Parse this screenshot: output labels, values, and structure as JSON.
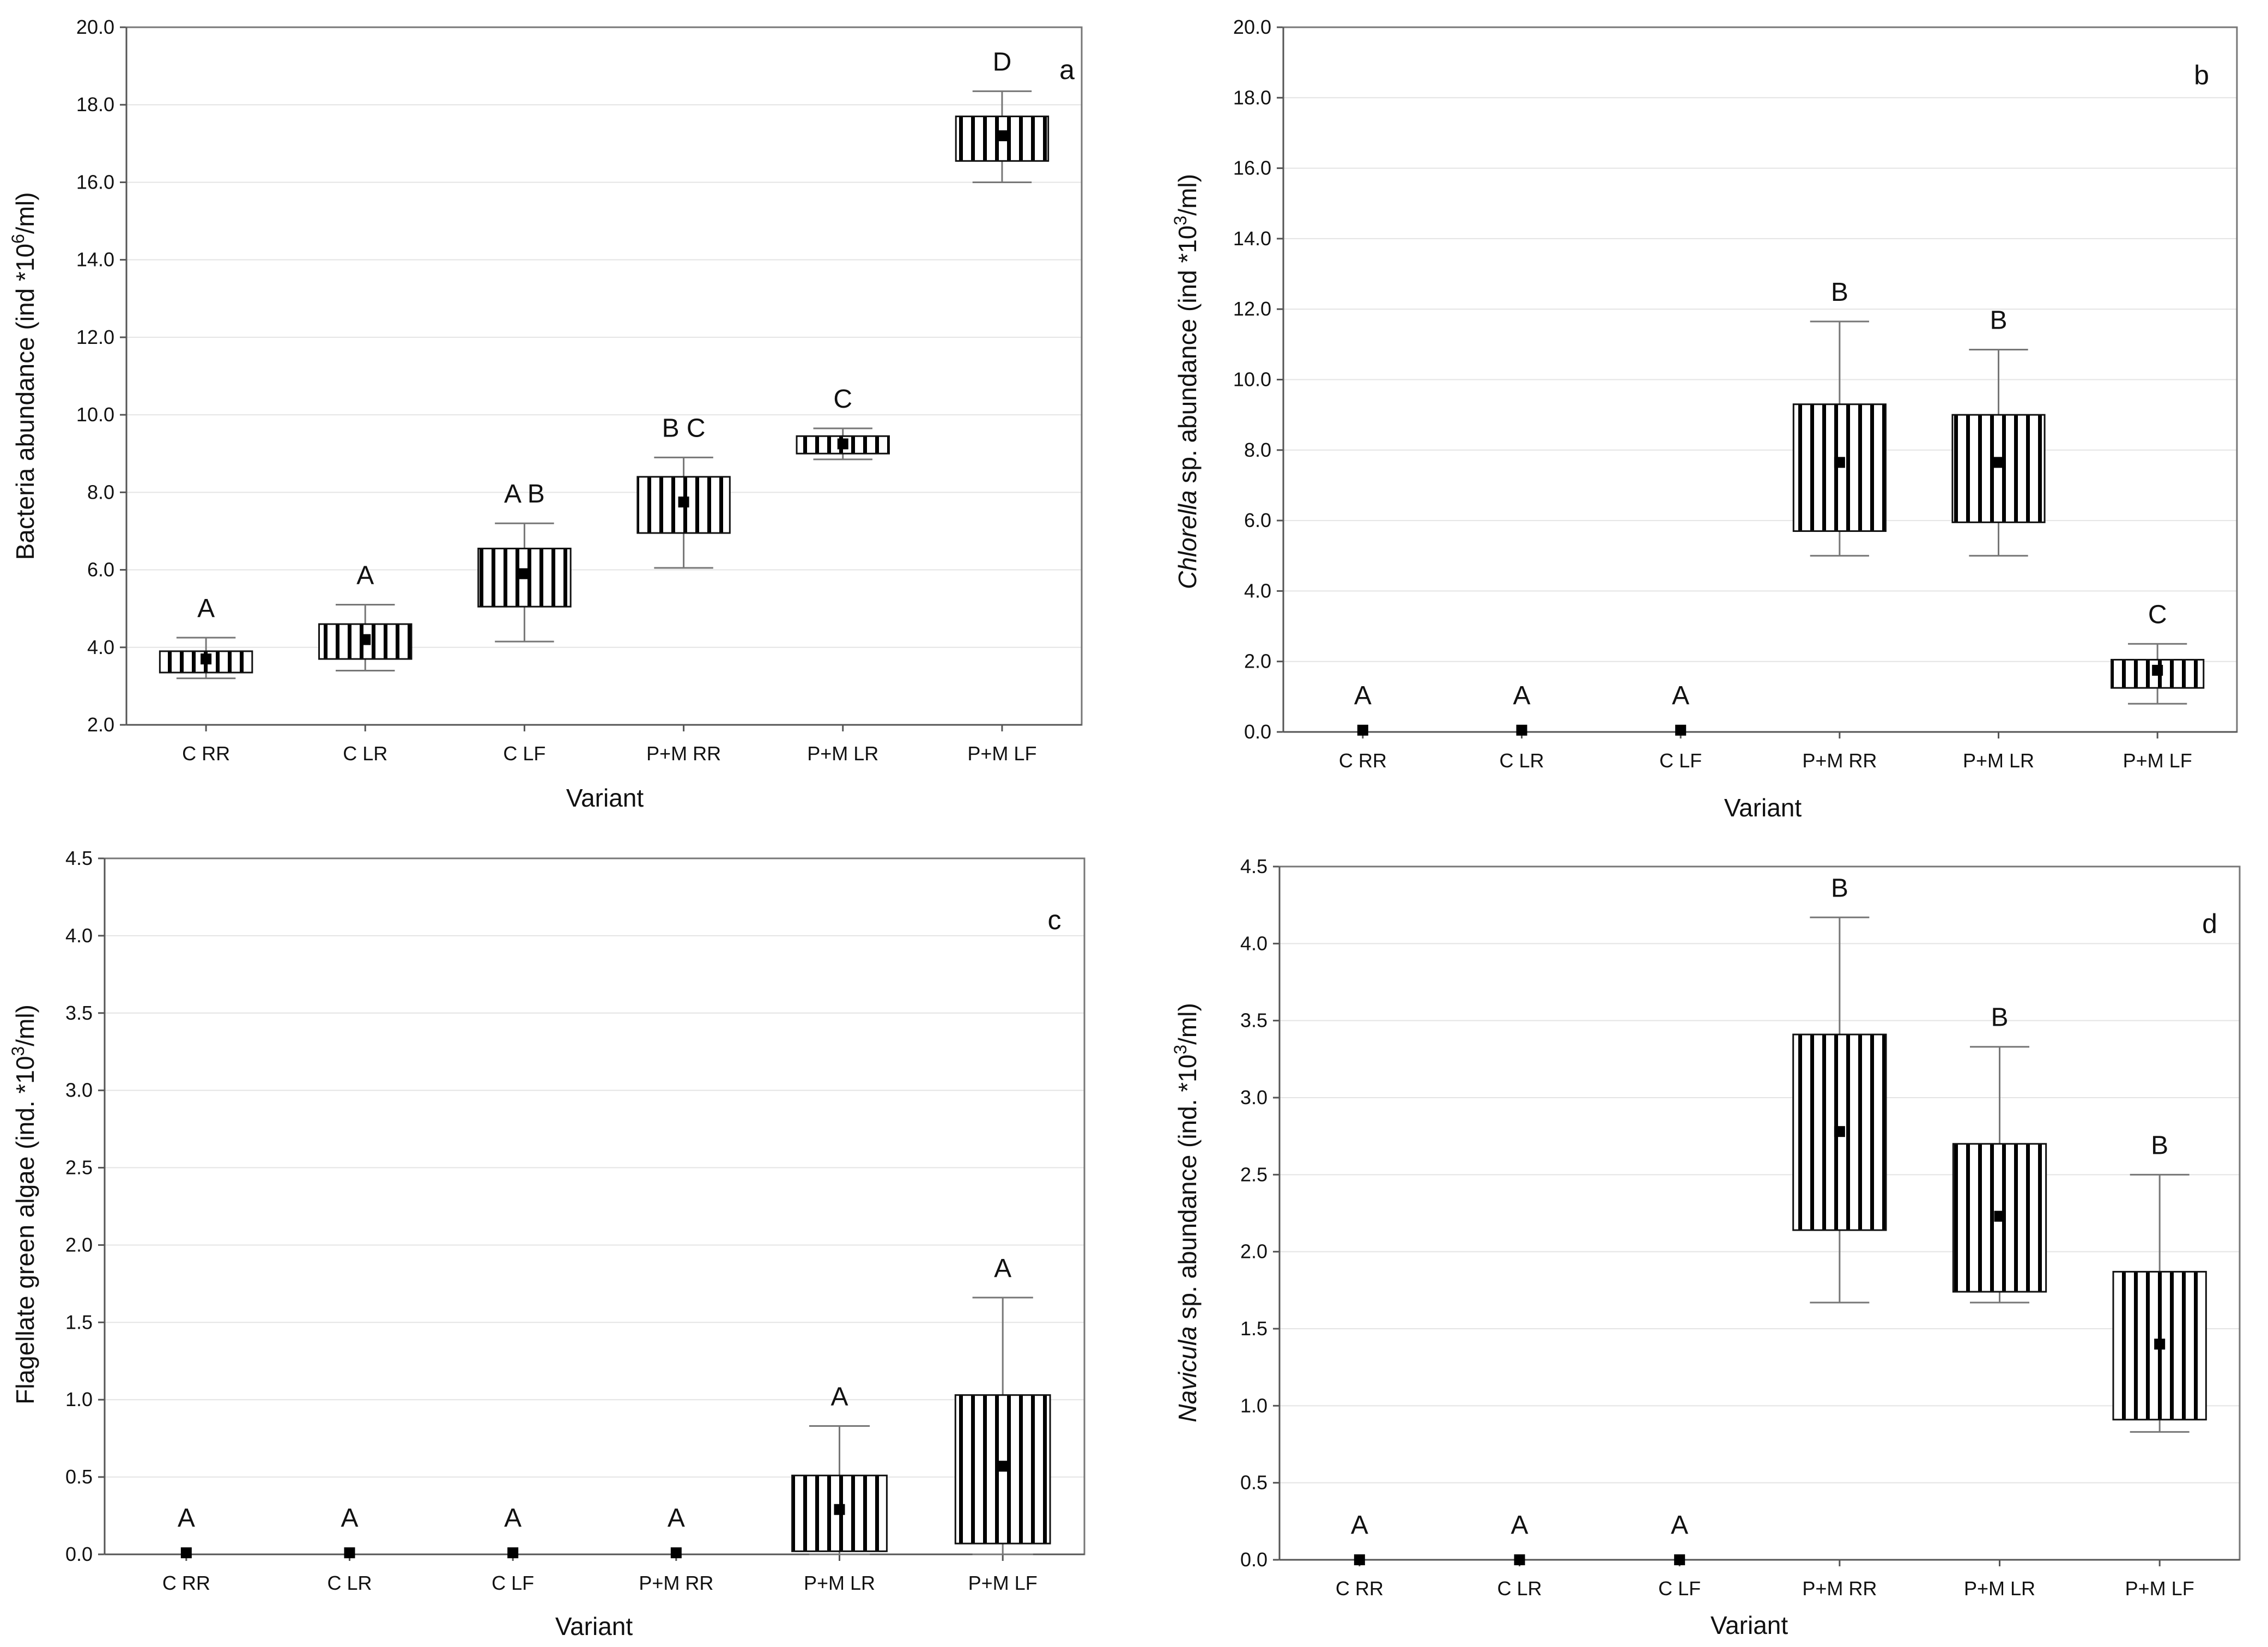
{
  "chart_data": [
    {
      "panel": "a",
      "type": "box",
      "xlabel": "Variant",
      "ylabel_parts": [
        {
          "text": "Bacteria abundance (ind *10",
          "italic": false,
          "sup": false
        },
        {
          "text": "6",
          "italic": false,
          "sup": true
        },
        {
          "text": "/ml)",
          "italic": false,
          "sup": false
        }
      ],
      "ylim": [
        2.0,
        20.0
      ],
      "yticks": [
        "2.0",
        "4.0",
        "6.0",
        "8.0",
        "10.0",
        "12.0",
        "14.0",
        "16.0",
        "18.0",
        "20.0"
      ],
      "categories": [
        "C RR",
        "C LR",
        "C LF",
        "P+M RR",
        "P+M LR",
        "P+M LF"
      ],
      "series": [
        {
          "category": "C RR",
          "mean": 3.7,
          "box_low": 3.35,
          "box_high": 3.9,
          "whisker_low": 3.2,
          "whisker_high": 4.25,
          "letter": "A"
        },
        {
          "category": "C LR",
          "mean": 4.2,
          "box_low": 3.7,
          "box_high": 4.6,
          "whisker_low": 3.4,
          "whisker_high": 5.1,
          "letter": "A"
        },
        {
          "category": "C LF",
          "mean": 5.9,
          "box_low": 5.05,
          "box_high": 6.55,
          "whisker_low": 4.15,
          "whisker_high": 7.2,
          "letter": "A B"
        },
        {
          "category": "P+M RR",
          "mean": 7.75,
          "box_low": 6.95,
          "box_high": 8.4,
          "whisker_low": 6.05,
          "whisker_high": 8.9,
          "letter": "B C"
        },
        {
          "category": "P+M LR",
          "mean": 9.25,
          "box_low": 9.0,
          "box_high": 9.45,
          "whisker_low": 8.85,
          "whisker_high": 9.65,
          "letter": "C"
        },
        {
          "category": "P+M LF",
          "mean": 17.2,
          "box_low": 16.55,
          "box_high": 17.7,
          "whisker_low": 16.0,
          "whisker_high": 18.35,
          "letter": "D"
        }
      ],
      "grid": true
    },
    {
      "panel": "b",
      "type": "box",
      "xlabel": "Variant",
      "ylabel_parts": [
        {
          "text": "Chlorella",
          "italic": true,
          "sup": false
        },
        {
          "text": " sp. abundance (ind *10",
          "italic": false,
          "sup": false
        },
        {
          "text": "3",
          "italic": false,
          "sup": true
        },
        {
          "text": "/ml)",
          "italic": false,
          "sup": false
        }
      ],
      "ylim": [
        0.0,
        20.0
      ],
      "yticks": [
        "0.0",
        "2.0",
        "4.0",
        "6.0",
        "8.0",
        "10.0",
        "12.0",
        "14.0",
        "16.0",
        "18.0",
        "20.0"
      ],
      "categories": [
        "C RR",
        "C LR",
        "C LF",
        "P+M RR",
        "P+M LR",
        "P+M LF"
      ],
      "series": [
        {
          "category": "C RR",
          "mean": 0.05,
          "box_low": null,
          "box_high": null,
          "whisker_low": null,
          "whisker_high": null,
          "letter": "A"
        },
        {
          "category": "C LR",
          "mean": 0.05,
          "box_low": null,
          "box_high": null,
          "whisker_low": null,
          "whisker_high": null,
          "letter": "A"
        },
        {
          "category": "C LF",
          "mean": 0.05,
          "box_low": null,
          "box_high": null,
          "whisker_low": null,
          "whisker_high": null,
          "letter": "A"
        },
        {
          "category": "P+M RR",
          "mean": 7.65,
          "box_low": 5.7,
          "box_high": 9.3,
          "whisker_low": 5.0,
          "whisker_high": 11.65,
          "letter": "B"
        },
        {
          "category": "P+M LR",
          "mean": 7.65,
          "box_low": 5.95,
          "box_high": 9.0,
          "whisker_low": 5.0,
          "whisker_high": 10.85,
          "letter": "B"
        },
        {
          "category": "P+M LF",
          "mean": 1.75,
          "box_low": 1.25,
          "box_high": 2.05,
          "whisker_low": 0.8,
          "whisker_high": 2.5,
          "letter": "C"
        }
      ],
      "grid": true
    },
    {
      "panel": "c",
      "type": "box",
      "xlabel": "Variant",
      "ylabel_parts": [
        {
          "text": "Flagellate green algae (ind. *10",
          "italic": false,
          "sup": false
        },
        {
          "text": "3",
          "italic": false,
          "sup": true
        },
        {
          "text": "/ml)",
          "italic": false,
          "sup": false
        }
      ],
      "ylim": [
        0.0,
        4.5
      ],
      "yticks": [
        "0.0",
        "0.5",
        "1.0",
        "1.5",
        "2.0",
        "2.5",
        "3.0",
        "3.5",
        "4.0",
        "4.5"
      ],
      "categories": [
        "C RR",
        "C LR",
        "C LF",
        "P+M RR",
        "P+M LR",
        "P+M LF"
      ],
      "series": [
        {
          "category": "C RR",
          "mean": 0.01,
          "box_low": null,
          "box_high": null,
          "whisker_low": null,
          "whisker_high": null,
          "letter": "A"
        },
        {
          "category": "C LR",
          "mean": 0.01,
          "box_low": null,
          "box_high": null,
          "whisker_low": null,
          "whisker_high": null,
          "letter": "A"
        },
        {
          "category": "C LF",
          "mean": 0.01,
          "box_low": null,
          "box_high": null,
          "whisker_low": null,
          "whisker_high": null,
          "letter": "A"
        },
        {
          "category": "P+M RR",
          "mean": 0.01,
          "box_low": null,
          "box_high": null,
          "whisker_low": null,
          "whisker_high": null,
          "letter": "A"
        },
        {
          "category": "P+M LR",
          "mean": 0.29,
          "box_low": 0.02,
          "box_high": 0.51,
          "whisker_low": 0.0,
          "whisker_high": 0.83,
          "letter": "A"
        },
        {
          "category": "P+M LF",
          "mean": 0.57,
          "box_low": 0.07,
          "box_high": 1.03,
          "whisker_low": 0.0,
          "whisker_high": 1.66,
          "letter": "A"
        }
      ],
      "grid": true
    },
    {
      "panel": "d",
      "type": "box",
      "xlabel": "Variant",
      "ylabel_parts": [
        {
          "text": "Navicula",
          "italic": true,
          "sup": false
        },
        {
          "text": " sp. abundance (ind. *10",
          "italic": false,
          "sup": false
        },
        {
          "text": "3",
          "italic": false,
          "sup": true
        },
        {
          "text": "/ml)",
          "italic": false,
          "sup": false
        }
      ],
      "ylim": [
        0.0,
        4.5
      ],
      "yticks": [
        "0.0",
        "0.5",
        "1.0",
        "1.5",
        "2.0",
        "2.5",
        "3.0",
        "3.5",
        "4.0",
        "4.5"
      ],
      "categories": [
        "C RR",
        "C LR",
        "C LF",
        "P+M RR",
        "P+M LR",
        "P+M LF"
      ],
      "series": [
        {
          "category": "C RR",
          "mean": 0.0,
          "box_low": null,
          "box_high": null,
          "whisker_low": null,
          "whisker_high": null,
          "letter": "A"
        },
        {
          "category": "C LR",
          "mean": 0.0,
          "box_low": null,
          "box_high": null,
          "whisker_low": null,
          "whisker_high": null,
          "letter": "A"
        },
        {
          "category": "C LF",
          "mean": 0.0,
          "box_low": null,
          "box_high": null,
          "whisker_low": null,
          "whisker_high": null,
          "letter": "A"
        },
        {
          "category": "P+M RR",
          "mean": 2.78,
          "box_low": 2.14,
          "box_high": 3.41,
          "whisker_low": 1.67,
          "whisker_high": 4.17,
          "letter": "B"
        },
        {
          "category": "P+M LR",
          "mean": 2.23,
          "box_low": 1.74,
          "box_high": 2.7,
          "whisker_low": 1.67,
          "whisker_high": 3.33,
          "letter": "B"
        },
        {
          "category": "P+M LF",
          "mean": 1.4,
          "box_low": 0.91,
          "box_high": 1.87,
          "whisker_low": 0.83,
          "whisker_high": 2.5,
          "letter": "B"
        }
      ],
      "grid": true
    }
  ]
}
